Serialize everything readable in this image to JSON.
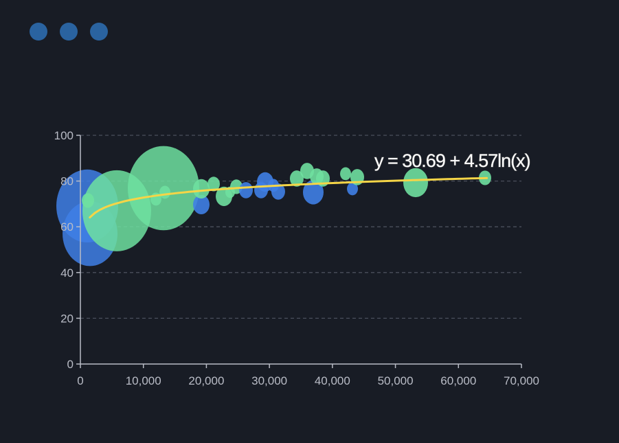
{
  "window": {
    "controls": [
      "dot",
      "dot",
      "dot"
    ],
    "control_color": "#2a63a0"
  },
  "chart_data": {
    "type": "scatter",
    "subtype": "bubble",
    "xlim": [
      0,
      70000
    ],
    "ylim": [
      0,
      100
    ],
    "x_ticks": [
      "0",
      "10,000",
      "20,000",
      "30,000",
      "40,000",
      "50,000",
      "60,000",
      "70,000"
    ],
    "y_ticks": [
      "0",
      "20",
      "40",
      "60",
      "80",
      "100"
    ],
    "grid": "horizontal dashed",
    "colors": {
      "blue": "#3f7fe6",
      "green": "#6fe0a0",
      "trend": "#f5d547"
    },
    "points": [
      {
        "x": 1090,
        "y": 69.1,
        "size": 45,
        "color": "blue"
      },
      {
        "x": 1530,
        "y": 57,
        "size": 40,
        "color": "blue"
      },
      {
        "x": 1200,
        "y": 71.5,
        "size": 9,
        "color": "green"
      },
      {
        "x": 5780,
        "y": 67,
        "size": 50,
        "color": "green"
      },
      {
        "x": 13190,
        "y": 76.9,
        "size": 52,
        "color": "green"
      },
      {
        "x": 11990,
        "y": 72.1,
        "size": 8,
        "color": "green"
      },
      {
        "x": 13410,
        "y": 75.1,
        "size": 8,
        "color": "green"
      },
      {
        "x": 19190,
        "y": 69.7,
        "size": 12,
        "color": "blue"
      },
      {
        "x": 19190,
        "y": 76.6,
        "size": 12,
        "color": "green"
      },
      {
        "x": 21150,
        "y": 78.7,
        "size": 9,
        "color": "green"
      },
      {
        "x": 22790,
        "y": 73.3,
        "size": 12,
        "color": "green"
      },
      {
        "x": 23770,
        "y": 75.1,
        "size": 7,
        "color": "green"
      },
      {
        "x": 24750,
        "y": 77.5,
        "size": 9,
        "color": "green"
      },
      {
        "x": 26280,
        "y": 76,
        "size": 10,
        "color": "blue"
      },
      {
        "x": 29330,
        "y": 79.6,
        "size": 12,
        "color": "blue"
      },
      {
        "x": 28680,
        "y": 76,
        "size": 10,
        "color": "blue"
      },
      {
        "x": 31400,
        "y": 75.4,
        "size": 10,
        "color": "blue"
      },
      {
        "x": 30640,
        "y": 78.1,
        "size": 8,
        "color": "blue"
      },
      {
        "x": 34340,
        "y": 81.1,
        "size": 10,
        "color": "green"
      },
      {
        "x": 35980,
        "y": 84.4,
        "size": 10,
        "color": "green"
      },
      {
        "x": 36960,
        "y": 75.1,
        "size": 15,
        "color": "blue"
      },
      {
        "x": 37510,
        "y": 82,
        "size": 10,
        "color": "green"
      },
      {
        "x": 38490,
        "y": 81.1,
        "size": 10,
        "color": "green"
      },
      {
        "x": 42090,
        "y": 83.2,
        "size": 8,
        "color": "green"
      },
      {
        "x": 43180,
        "y": 76.6,
        "size": 8,
        "color": "blue"
      },
      {
        "x": 43940,
        "y": 81.7,
        "size": 10,
        "color": "green"
      },
      {
        "x": 53210,
        "y": 79.3,
        "size": 18,
        "color": "green"
      },
      {
        "x": 64220,
        "y": 81.4,
        "size": 9,
        "color": "green"
      }
    ],
    "trendline": {
      "type": "logarithmic",
      "a": 30.69,
      "b": 4.57,
      "x_range": [
        1500,
        64500
      ],
      "label": "y = 30.69 + 4.57ln(x)"
    }
  }
}
